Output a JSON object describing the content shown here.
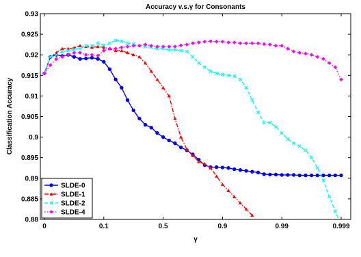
{
  "chart_data": {
    "type": "line",
    "title": "Accuracy v.s.γ for Consonants",
    "xlabel": "γ",
    "ylabel": "Classification Accuracy",
    "x_tick_labels": [
      "0",
      "0.1",
      "0.5",
      "0.9",
      "0.99",
      "0.999"
    ],
    "ylim": [
      0.88,
      0.93
    ],
    "y_ticks": [
      0.88,
      0.885,
      0.89,
      0.895,
      0.9,
      0.905,
      0.91,
      0.915,
      0.92,
      0.925,
      0.93
    ],
    "y_tick_labels": [
      "0.88",
      "0.885",
      "0.89",
      "0.895",
      "0.9",
      "0.905",
      "0.91",
      "0.915",
      "0.92",
      "0.925",
      "0.93"
    ],
    "grid": false,
    "legend_position": "bottom-left",
    "note_x": "x values are positions on the warped gamma axis, in tick-index units (0 = '0', 5 = '0.999')",
    "series": [
      {
        "name": "SLDE-0",
        "color": "#0000ff",
        "linestyle": "solid",
        "marker": "circle",
        "x": [
          0.0,
          0.1,
          0.2,
          0.3,
          0.4,
          0.5,
          0.6,
          0.7,
          0.8,
          0.9,
          1.0,
          1.1,
          1.2,
          1.3,
          1.4,
          1.5,
          1.6,
          1.7,
          1.8,
          1.9,
          2.0,
          2.1,
          2.2,
          2.3,
          2.4,
          2.5,
          2.6,
          2.7,
          2.8,
          2.9,
          3.0,
          3.1,
          3.2,
          3.3,
          3.4,
          3.5,
          3.6,
          3.7,
          3.8,
          3.9,
          4.0,
          4.1,
          4.2,
          4.3,
          4.4,
          4.5,
          4.6,
          4.7,
          4.8,
          4.9,
          5.0
        ],
        "y": [
          0.9155,
          0.9195,
          0.92,
          0.9197,
          0.92,
          0.9195,
          0.919,
          0.9191,
          0.9193,
          0.919,
          0.9183,
          0.9165,
          0.914,
          0.912,
          0.909,
          0.9065,
          0.9045,
          0.903,
          0.9023,
          0.901,
          0.9,
          0.8992,
          0.8985,
          0.8975,
          0.8968,
          0.8958,
          0.8945,
          0.8932,
          0.8927,
          0.8927,
          0.8926,
          0.8925,
          0.8922,
          0.892,
          0.8918,
          0.8916,
          0.8914,
          0.891,
          0.8909,
          0.8909,
          0.8908,
          0.8908,
          0.8908,
          0.8907,
          0.8907,
          0.8907,
          0.8907,
          0.8907,
          0.8907,
          0.8907,
          0.8907
        ]
      },
      {
        "name": "SLDE-1",
        "color": "#ff0000",
        "linestyle": "dashdot",
        "marker": "triangle",
        "x": [
          0.0,
          0.1,
          0.2,
          0.3,
          0.4,
          0.5,
          0.6,
          0.7,
          0.8,
          0.9,
          1.0,
          1.1,
          1.2,
          1.3,
          1.4,
          1.5,
          1.6,
          1.7,
          1.8,
          1.9,
          2.0,
          2.1,
          2.2,
          2.3,
          2.4,
          2.5,
          2.6,
          2.7,
          2.8,
          2.9,
          3.0,
          3.1,
          3.2,
          3.3,
          3.4,
          3.5
        ],
        "y": [
          0.9155,
          0.9195,
          0.9205,
          0.9215,
          0.9215,
          0.9217,
          0.9222,
          0.922,
          0.9218,
          0.922,
          0.9218,
          0.9215,
          0.921,
          0.921,
          0.9205,
          0.92,
          0.9195,
          0.918,
          0.916,
          0.914,
          0.912,
          0.91,
          0.9045,
          0.9,
          0.897,
          0.8955,
          0.894,
          0.8935,
          0.8925,
          0.8905,
          0.8885,
          0.887,
          0.8855,
          0.884,
          0.8825,
          0.881
        ]
      },
      {
        "name": "SLDE-2",
        "color": "#00ffff",
        "linestyle": "dashed",
        "marker": "x",
        "x": [
          0.0,
          0.1,
          0.2,
          0.3,
          0.4,
          0.5,
          0.6,
          0.7,
          0.8,
          0.9,
          1.0,
          1.1,
          1.2,
          1.3,
          1.4,
          1.5,
          1.6,
          1.7,
          1.8,
          1.9,
          2.0,
          2.1,
          2.2,
          2.3,
          2.4,
          2.5,
          2.6,
          2.7,
          2.8,
          2.9,
          3.0,
          3.1,
          3.2,
          3.3,
          3.4,
          3.5,
          3.6,
          3.7,
          3.8,
          3.9,
          4.0,
          4.1,
          4.2,
          4.3,
          4.4,
          4.5,
          4.6,
          4.7,
          4.8,
          4.9,
          5.0
        ],
        "y": [
          0.9155,
          0.9195,
          0.92,
          0.9207,
          0.921,
          0.9213,
          0.9215,
          0.9222,
          0.9222,
          0.9228,
          0.9223,
          0.9228,
          0.9235,
          0.9233,
          0.9228,
          0.9226,
          0.9222,
          0.922,
          0.9218,
          0.9215,
          0.9215,
          0.9212,
          0.9212,
          0.921,
          0.9208,
          0.9195,
          0.918,
          0.917,
          0.916,
          0.9155,
          0.9152,
          0.915,
          0.9148,
          0.914,
          0.912,
          0.909,
          0.906,
          0.9035,
          0.9035,
          0.9025,
          0.901,
          0.8995,
          0.8985,
          0.8978,
          0.8968,
          0.895,
          0.8925,
          0.8895,
          0.8855,
          0.882,
          0.8785
        ]
      },
      {
        "name": "SLDE-4",
        "color": "#ff00ff",
        "linestyle": "dotted",
        "marker": "diamond",
        "x": [
          0.0,
          0.1,
          0.2,
          0.3,
          0.4,
          0.5,
          0.6,
          0.7,
          0.8,
          0.9,
          1.0,
          1.1,
          1.2,
          1.3,
          1.4,
          1.5,
          1.6,
          1.7,
          1.8,
          1.9,
          2.0,
          2.1,
          2.2,
          2.3,
          2.4,
          2.5,
          2.6,
          2.7,
          2.8,
          2.9,
          3.0,
          3.1,
          3.2,
          3.3,
          3.4,
          3.5,
          3.6,
          3.7,
          3.8,
          3.9,
          4.0,
          4.1,
          4.2,
          4.3,
          4.4,
          4.5,
          4.6,
          4.7,
          4.8,
          4.9,
          5.0
        ],
        "y": [
          0.9155,
          0.9175,
          0.919,
          0.9195,
          0.92,
          0.9205,
          0.9205,
          0.92,
          0.92,
          0.9198,
          0.921,
          0.9215,
          0.9215,
          0.9218,
          0.922,
          0.9222,
          0.9222,
          0.9225,
          0.9222,
          0.922,
          0.922,
          0.922,
          0.922,
          0.9223,
          0.9225,
          0.9228,
          0.923,
          0.9232,
          0.9233,
          0.9232,
          0.9232,
          0.923,
          0.923,
          0.9228,
          0.9228,
          0.9228,
          0.9228,
          0.9226,
          0.9225,
          0.9222,
          0.9222,
          0.9215,
          0.9208,
          0.9205,
          0.9203,
          0.92,
          0.9195,
          0.919,
          0.918,
          0.917,
          0.914
        ]
      }
    ]
  }
}
